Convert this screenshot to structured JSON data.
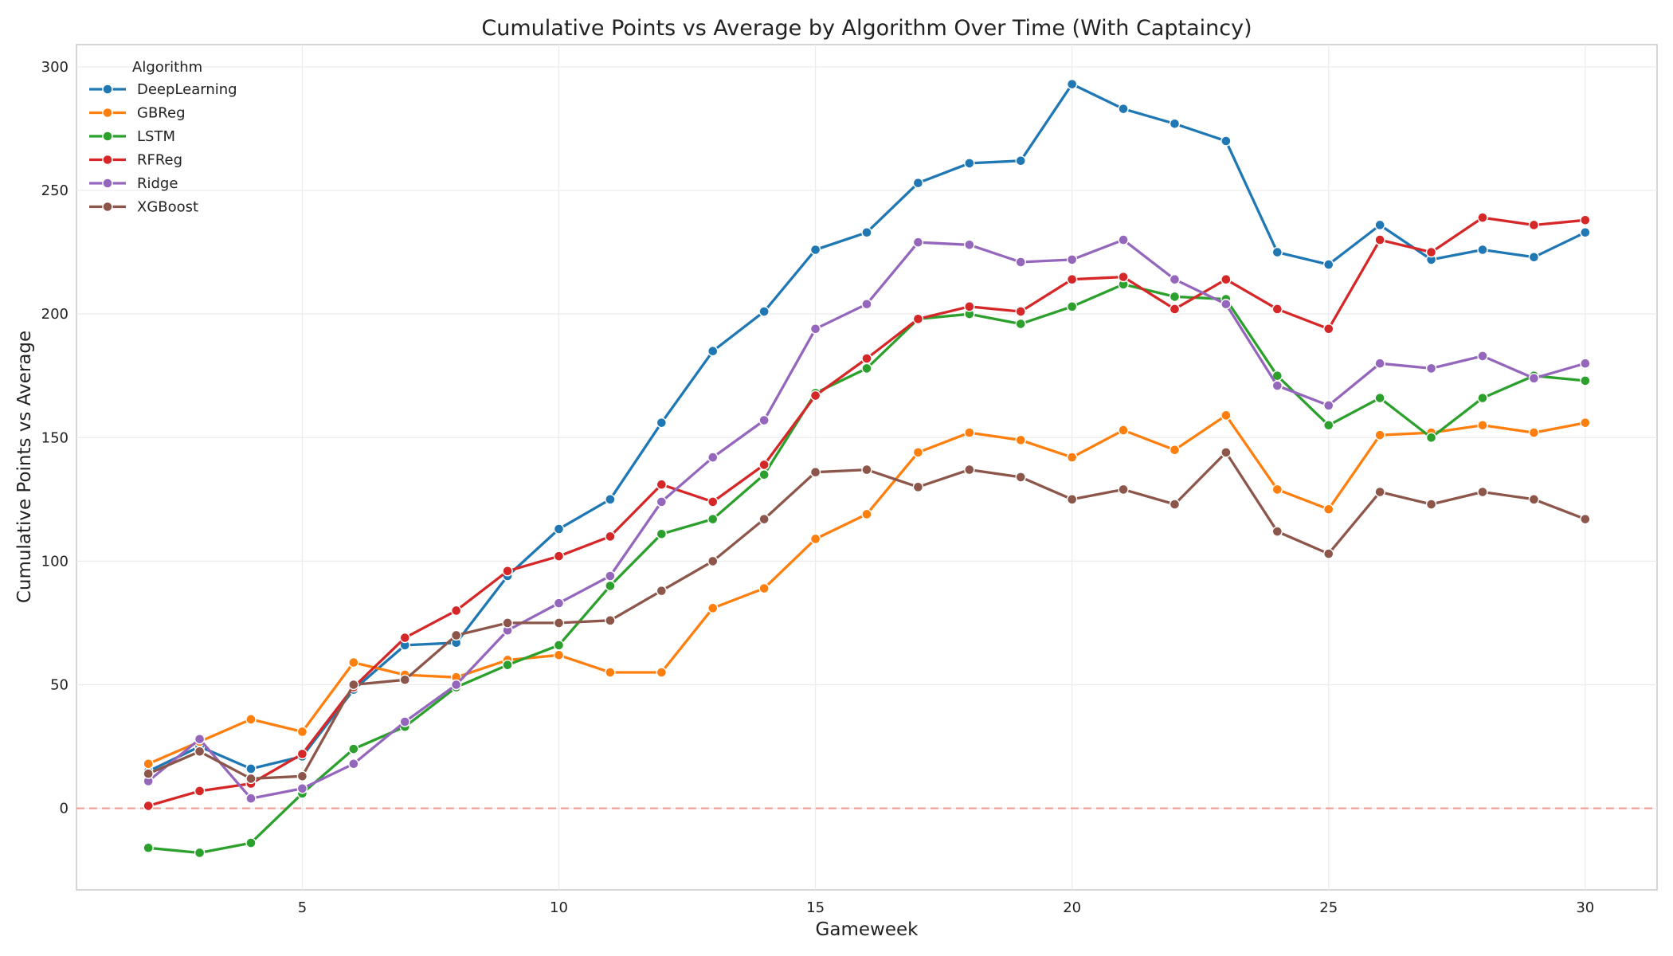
{
  "chart_data": {
    "type": "line",
    "title": "Cumulative Points vs Average by Algorithm Over Time (With Captaincy)",
    "xlabel": "Gameweek",
    "ylabel": "Cumulative Points vs Average",
    "xlim": [
      0.6,
      31.4
    ],
    "ylim": [
      -33,
      309
    ],
    "xticks": [
      5,
      10,
      15,
      20,
      25,
      30
    ],
    "yticks": [
      0,
      50,
      100,
      150,
      200,
      250,
      300
    ],
    "grid": true,
    "reference_line": {
      "y": 0,
      "style": "dashed",
      "color": "#f4a09c"
    },
    "legend": {
      "title": "Algorithm",
      "placement": "top-left"
    },
    "x": [
      2,
      3,
      4,
      5,
      6,
      7,
      8,
      9,
      10,
      11,
      12,
      13,
      14,
      15,
      16,
      17,
      18,
      19,
      20,
      21,
      22,
      23,
      24,
      25,
      26,
      27,
      28,
      29,
      30
    ],
    "series": [
      {
        "name": "DeepLearning",
        "color": "#1f77b4",
        "values": [
          15,
          25,
          16,
          21,
          48,
          66,
          67,
          94,
          113,
          125,
          156,
          185,
          201,
          226,
          233,
          253,
          261,
          262,
          293,
          283,
          277,
          270,
          225,
          220,
          236,
          222,
          226,
          223,
          233
        ]
      },
      {
        "name": "GBReg",
        "color": "#ff7f0e",
        "values": [
          18,
          27,
          36,
          31,
          59,
          54,
          53,
          60,
          62,
          55,
          55,
          81,
          89,
          109,
          119,
          144,
          152,
          149,
          142,
          153,
          145,
          159,
          129,
          121,
          151,
          152,
          155,
          152,
          156
        ]
      },
      {
        "name": "LSTM",
        "color": "#2ca02c",
        "values": [
          -16,
          -18,
          -14,
          6,
          24,
          33,
          49,
          58,
          66,
          90,
          111,
          117,
          135,
          168,
          178,
          198,
          200,
          196,
          203,
          212,
          207,
          206,
          175,
          155,
          166,
          150,
          166,
          175,
          173
        ]
      },
      {
        "name": "RFReg",
        "color": "#d62728",
        "values": [
          1,
          7,
          10,
          22,
          49,
          69,
          80,
          96,
          102,
          110,
          131,
          124,
          139,
          167,
          182,
          198,
          203,
          201,
          214,
          215,
          202,
          214,
          202,
          194,
          230,
          225,
          239,
          236,
          238
        ]
      },
      {
        "name": "Ridge",
        "color": "#9467bd",
        "values": [
          11,
          28,
          4,
          8,
          18,
          35,
          50,
          72,
          83,
          94,
          124,
          142,
          157,
          194,
          204,
          229,
          228,
          221,
          222,
          230,
          214,
          204,
          171,
          163,
          180,
          178,
          183,
          174,
          180
        ]
      },
      {
        "name": "XGBoost",
        "color": "#8c564b",
        "values": [
          14,
          23,
          12,
          13,
          50,
          52,
          70,
          75,
          75,
          76,
          88,
          100,
          117,
          136,
          137,
          130,
          137,
          134,
          125,
          129,
          123,
          144,
          112,
          103,
          128,
          123,
          128,
          125,
          117
        ]
      }
    ]
  }
}
